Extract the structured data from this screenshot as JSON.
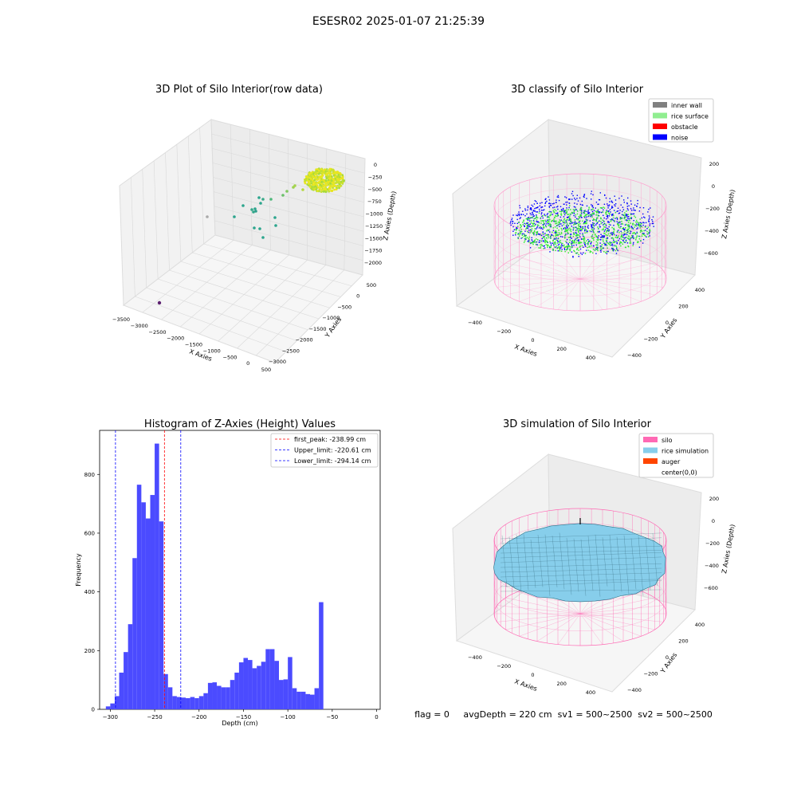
{
  "suptitle": "ESESR02 2025-01-07 21:25:39",
  "status_line": "flag = 0     avgDepth = 220 cm  sv1 = 500~2500  sv2 = 500~2500",
  "colors": {
    "inner_wall": "#808080",
    "rice_surface": "#90ee90",
    "obstacle": "#ff0000",
    "noise": "#0000ff",
    "silo": "#ff69b4",
    "rice_simulation": "#87ceeb",
    "auger": "#ff4500",
    "hist_bar": "#4b4bff",
    "first_peak_line": "#ff0000",
    "limit_line": "#0000ff"
  },
  "panels": {
    "raw": {
      "title": "3D Plot of Silo Interior(row data)",
      "xlabel": "X Axies",
      "ylabel": "Y Axies",
      "zlabel": "Z Axies (Depth)",
      "x_ticks": [
        "−3500",
        "−3000",
        "−2500",
        "−2000",
        "−1500",
        "−1000",
        "−500",
        "0",
        "500"
      ],
      "y_ticks": [
        "500",
        "0",
        "−500",
        "−1000",
        "−1500",
        "−2000",
        "−2500",
        "−3000"
      ],
      "z_ticks": [
        "0",
        "−250",
        "−500",
        "−750",
        "−1000",
        "−1250",
        "−1500",
        "−1750",
        "−2000"
      ]
    },
    "classify": {
      "title": "3D classify of Silo Interior",
      "xlabel": "X Axies",
      "ylabel": "Y Axies",
      "zlabel": "Z Axies (Depth)",
      "x_ticks": [
        "−400",
        "−200",
        "0",
        "200",
        "400"
      ],
      "y_ticks": [
        "400",
        "200",
        "0",
        "−200",
        "−400"
      ],
      "z_ticks": [
        "200",
        "0",
        "−200",
        "−400",
        "−600"
      ],
      "legend": [
        {
          "label": "inner wall",
          "color": "#808080"
        },
        {
          "label": "rice surface",
          "color": "#90ee90"
        },
        {
          "label": "obstacle",
          "color": "#ff0000"
        },
        {
          "label": "noise",
          "color": "#0000ff"
        }
      ]
    },
    "simulation": {
      "title": "3D simulation of Silo Interior",
      "xlabel": "X Axies",
      "ylabel": "Y Axies",
      "zlabel": "Z Axies (Depth)",
      "x_ticks": [
        "−400",
        "−200",
        "0",
        "200",
        "400"
      ],
      "y_ticks": [
        "400",
        "200",
        "0",
        "−200",
        "−400"
      ],
      "z_ticks": [
        "200",
        "0",
        "−200",
        "−400",
        "−600"
      ],
      "legend": [
        {
          "label": "silo",
          "color": "#ff69b4"
        },
        {
          "label": "rice simulation",
          "color": "#87ceeb"
        },
        {
          "label": "auger",
          "color": "#ff4500"
        },
        {
          "label": "center(0,0)",
          "color": ""
        }
      ]
    }
  },
  "chart_data": {
    "type": "bar",
    "title": "Histogram of Z-Axies (Height) Values",
    "xlabel": "Depth (cm)",
    "ylabel": "Frequency",
    "xlim": [
      -312,
      4
    ],
    "ylim": [
      0,
      950
    ],
    "x_ticks": [
      -300,
      -250,
      -200,
      -150,
      -100,
      -50,
      0
    ],
    "y_ticks": [
      0,
      200,
      400,
      600,
      800
    ],
    "bin_start": -305,
    "bin_width": 5,
    "values": [
      10,
      20,
      45,
      125,
      195,
      290,
      515,
      765,
      705,
      650,
      730,
      905,
      640,
      120,
      75,
      45,
      42,
      40,
      38,
      42,
      38,
      45,
      55,
      90,
      92,
      80,
      75,
      75,
      100,
      125,
      160,
      175,
      168,
      140,
      148,
      162,
      205,
      205,
      165,
      100,
      102,
      178,
      72,
      60,
      60,
      52,
      50,
      72,
      365
    ],
    "vlines": [
      {
        "label": "first_peak: -238.99 cm",
        "x": -238.99,
        "color": "#ff0000"
      },
      {
        "label": "Upper_limit: -220.61 cm",
        "x": -220.61,
        "color": "#0000ff"
      },
      {
        "label": "Lower_limit: -294.14 cm",
        "x": -294.14,
        "color": "#0000ff"
      }
    ],
    "legend_position": "top-right"
  }
}
